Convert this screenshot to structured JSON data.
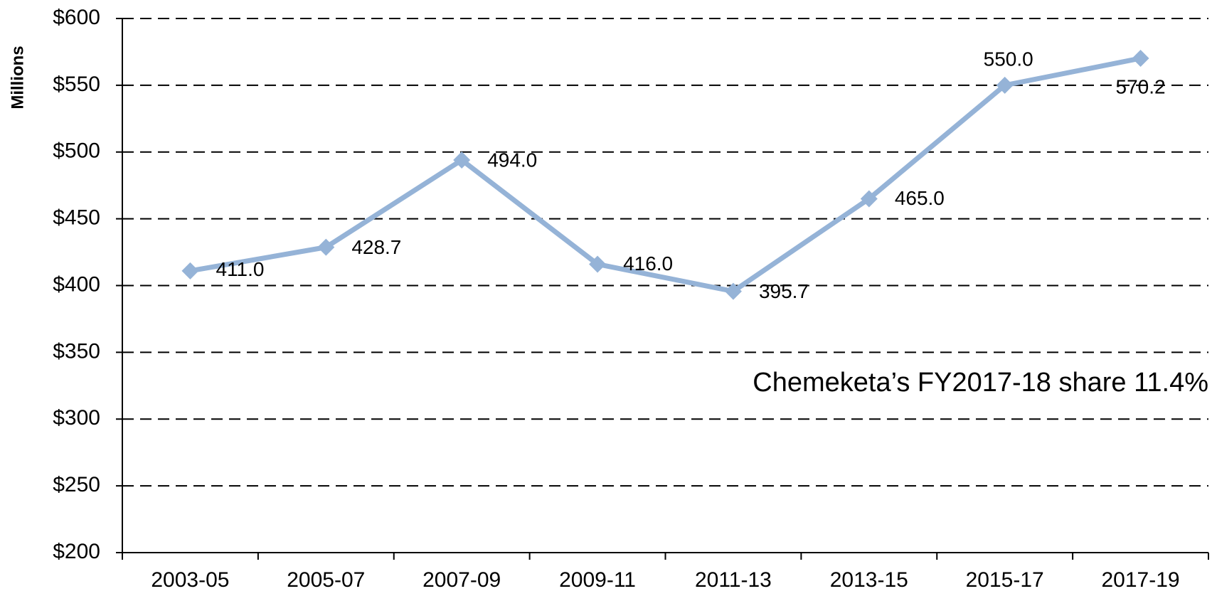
{
  "chart_data": {
    "type": "line",
    "y_label": "Millions",
    "annotation": "Chemeketa’s FY2017-18 share 11.4%",
    "categories": [
      "2003-05",
      "2005-07",
      "2007-09",
      "2009-11",
      "2011-13",
      "2013-15",
      "2015-17",
      "2017-19"
    ],
    "series": [
      {
        "name": null,
        "color": "#95b3d7",
        "values": [
          411.0,
          428.7,
          494.0,
          416.0,
          395.7,
          465.0,
          550.0,
          570.2
        ],
        "value_labels": [
          "411.0",
          "428.7",
          "494.0",
          "416.0",
          "395.7",
          "465.0",
          "550.0",
          "570.2"
        ]
      }
    ],
    "ylim": [
      200,
      600
    ],
    "yticks": [
      {
        "value": 200,
        "label": "$200"
      },
      {
        "value": 250,
        "label": "$250"
      },
      {
        "value": 300,
        "label": "$300"
      },
      {
        "value": 350,
        "label": "$350"
      },
      {
        "value": 400,
        "label": "$400"
      },
      {
        "value": 450,
        "label": "$450"
      },
      {
        "value": 500,
        "label": "$500"
      },
      {
        "value": 550,
        "label": "$550"
      },
      {
        "value": 600,
        "label": "$600"
      }
    ],
    "grid": true
  }
}
